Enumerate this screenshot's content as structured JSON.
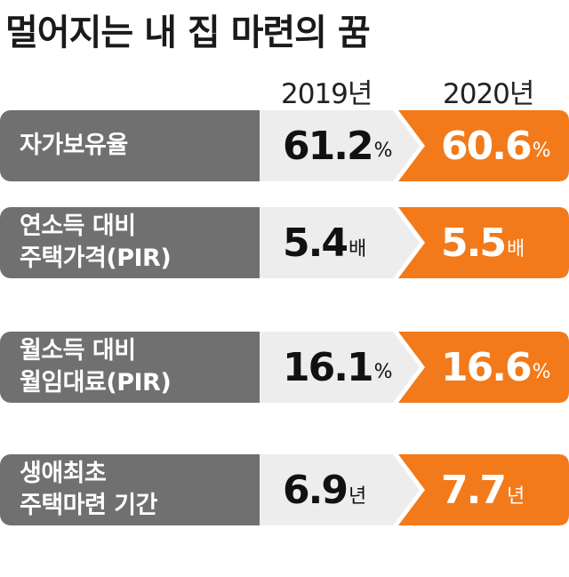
{
  "title": "멀어지는 내 집 마련의 꿈",
  "colors": {
    "label_bg": "#707070",
    "year2019_bg": "#ededed",
    "year2020_bg": "#f27a1a"
  },
  "chart_data": {
    "type": "table",
    "title": "멀어지는 내 집 마련의 꿈",
    "columns": [
      "2019년",
      "2020년"
    ],
    "rows": [
      {
        "label": "자가보유율",
        "values": [
          61.2,
          60.6
        ],
        "display": [
          "61.2",
          "60.6"
        ],
        "unit": "%"
      },
      {
        "label": "연소득 대비\n주택가격(PIR)",
        "values": [
          5.4,
          5.5
        ],
        "display": [
          "5.4",
          "5.5"
        ],
        "unit": "배"
      },
      {
        "label": "월소득 대비\n월임대료(PIR)",
        "values": [
          16.1,
          16.6
        ],
        "display": [
          "16.1",
          "16.6"
        ],
        "unit": "%"
      },
      {
        "label": "생애최초\n주택마련 기간",
        "values": [
          6.9,
          7.7
        ],
        "display": [
          "6.9",
          "7.7"
        ],
        "unit": "년"
      }
    ]
  }
}
